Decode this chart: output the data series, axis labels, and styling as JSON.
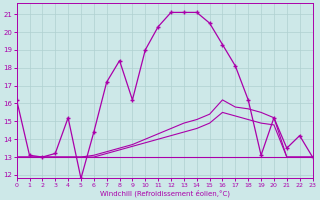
{
  "xlabel": "Windchill (Refroidissement éolien,°C)",
  "xlim": [
    0,
    23
  ],
  "ylim": [
    11.8,
    21.6
  ],
  "xtick_vals": [
    0,
    1,
    2,
    3,
    4,
    5,
    6,
    7,
    8,
    9,
    10,
    11,
    12,
    13,
    14,
    15,
    16,
    17,
    18,
    19,
    20,
    21,
    22,
    23
  ],
  "ytick_vals": [
    12,
    13,
    14,
    15,
    16,
    17,
    18,
    19,
    20,
    21
  ],
  "bg_color": "#cde8e8",
  "line_color": "#aa00aa",
  "grid_color": "#b0d0d0",
  "c1_x": [
    0,
    1,
    2,
    3,
    4,
    5,
    6,
    7,
    8,
    9,
    10,
    11,
    12,
    13,
    14,
    15,
    16,
    17,
    18,
    19,
    20,
    21,
    22,
    23
  ],
  "c1_y": [
    16.2,
    13.1,
    13.0,
    13.2,
    15.2,
    11.8,
    14.4,
    17.2,
    18.4,
    16.2,
    19.0,
    20.3,
    21.1,
    21.1,
    21.1,
    20.5,
    19.3,
    18.1,
    16.2,
    13.1,
    15.2,
    13.5,
    14.2,
    13.0
  ],
  "c2_x": [
    0,
    1,
    2,
    3,
    4,
    5,
    6,
    7,
    8,
    9,
    10,
    11,
    12,
    13,
    14,
    15,
    16,
    17,
    18,
    19,
    20,
    21,
    22,
    23
  ],
  "c2_y": [
    13.0,
    13.0,
    13.0,
    13.0,
    13.0,
    13.0,
    13.1,
    13.3,
    13.5,
    13.7,
    14.0,
    14.3,
    14.6,
    14.9,
    15.1,
    15.4,
    16.2,
    15.8,
    15.7,
    15.5,
    15.2,
    13.0,
    13.0,
    13.0
  ],
  "c3_x": [
    0,
    1,
    2,
    3,
    4,
    5,
    6,
    7,
    8,
    9,
    10,
    11,
    12,
    13,
    14,
    15,
    16,
    17,
    18,
    19,
    20,
    21,
    22,
    23
  ],
  "c3_y": [
    13.0,
    13.0,
    13.0,
    13.0,
    13.0,
    13.0,
    13.0,
    13.2,
    13.4,
    13.6,
    13.8,
    14.0,
    14.2,
    14.4,
    14.6,
    14.9,
    15.5,
    15.3,
    15.1,
    14.9,
    14.8,
    13.0,
    13.0,
    13.0
  ],
  "c4_x": [
    0,
    5,
    10,
    15,
    19,
    20,
    21,
    22,
    23
  ],
  "c4_y": [
    13.0,
    13.0,
    13.0,
    13.0,
    13.0,
    13.0,
    13.0,
    13.0,
    13.0
  ]
}
